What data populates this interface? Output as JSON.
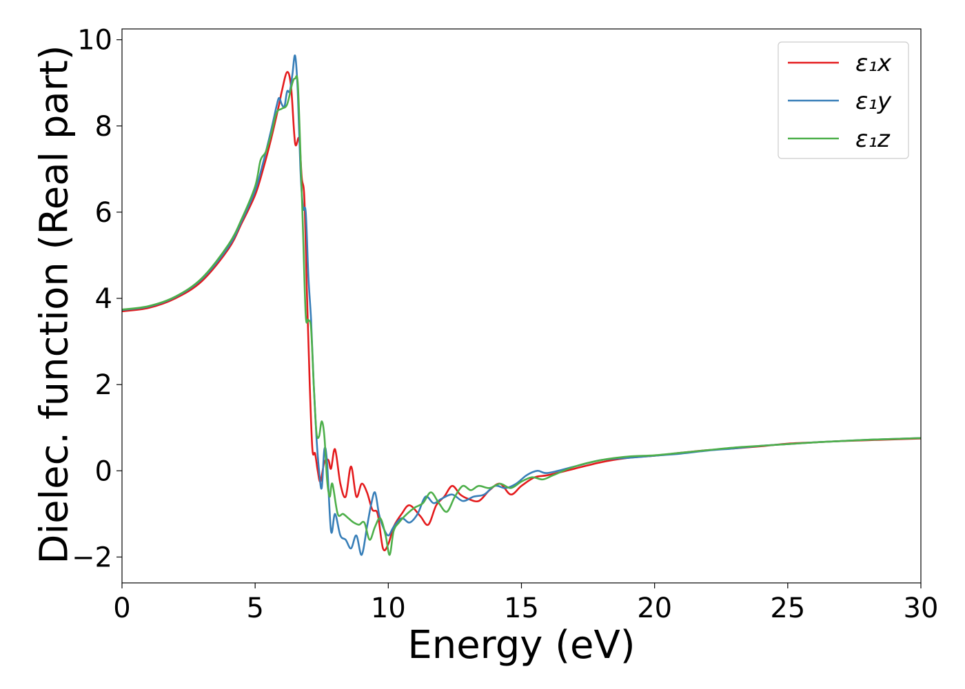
{
  "chart_data": {
    "type": "line",
    "xlabel": "Energy (eV)",
    "ylabel": "Dielec. function (Real part)",
    "xlim": [
      0,
      30
    ],
    "ylim": [
      -2.6,
      10.25
    ],
    "xticks": [
      0,
      5,
      10,
      15,
      20,
      25,
      30
    ],
    "yticks": [
      -2,
      0,
      2,
      4,
      6,
      8,
      10
    ],
    "xtick_labels": [
      "0",
      "5",
      "10",
      "15",
      "20",
      "25",
      "30"
    ],
    "ytick_labels": [
      "−2",
      "0",
      "2",
      "4",
      "6",
      "8",
      "10"
    ],
    "grid": false,
    "legend_position": "top-right",
    "series": [
      {
        "name": "ε₁x",
        "color": "#e41a1c",
        "x": [
          0,
          1,
          2,
          3,
          4,
          4.5,
          5,
          5.3,
          5.6,
          5.9,
          6.0,
          6.2,
          6.35,
          6.5,
          6.65,
          6.75,
          6.85,
          6.95,
          7.05,
          7.15,
          7.25,
          7.35,
          7.45,
          7.6,
          7.75,
          7.85,
          8.0,
          8.2,
          8.4,
          8.6,
          8.8,
          9.0,
          9.2,
          9.4,
          9.6,
          9.8,
          10.0,
          10.2,
          10.5,
          10.8,
          11.2,
          11.5,
          11.8,
          12.1,
          12.4,
          12.7,
          13.0,
          13.4,
          13.8,
          14.2,
          14.6,
          15.0,
          15.5,
          16.0,
          17.0,
          18.0,
          19.0,
          20.0,
          21.0,
          22.0,
          23.0,
          24.0,
          25.0,
          26.0,
          27.0,
          28.0,
          29.0,
          30.0
        ],
        "y": [
          3.7,
          3.78,
          4.0,
          4.4,
          5.15,
          5.75,
          6.4,
          7.0,
          7.7,
          8.5,
          8.8,
          9.25,
          8.9,
          7.6,
          7.7,
          6.8,
          6.3,
          4.0,
          2.0,
          0.5,
          0.4,
          0.0,
          -0.25,
          0.2,
          0.25,
          0.05,
          0.5,
          -0.3,
          -0.6,
          0.1,
          -0.6,
          -0.3,
          -0.5,
          -0.9,
          -1.0,
          -1.8,
          -1.7,
          -1.3,
          -1.0,
          -0.8,
          -1.05,
          -1.25,
          -0.8,
          -0.6,
          -0.35,
          -0.55,
          -0.65,
          -0.7,
          -0.45,
          -0.3,
          -0.55,
          -0.35,
          -0.15,
          -0.1,
          0.05,
          0.2,
          0.3,
          0.35,
          0.42,
          0.48,
          0.52,
          0.57,
          0.63,
          0.66,
          0.69,
          0.71,
          0.73,
          0.75
        ]
      },
      {
        "name": "ε₁y",
        "color": "#377eb8",
        "x": [
          0,
          1,
          2,
          3,
          4,
          4.5,
          5,
          5.3,
          5.6,
          5.8,
          5.9,
          6.0,
          6.1,
          6.2,
          6.3,
          6.4,
          6.5,
          6.6,
          6.7,
          6.8,
          6.9,
          7.0,
          7.1,
          7.2,
          7.3,
          7.4,
          7.5,
          7.6,
          7.7,
          7.85,
          8.0,
          8.2,
          8.4,
          8.6,
          8.8,
          9.0,
          9.2,
          9.35,
          9.5,
          9.65,
          9.8,
          10.0,
          10.2,
          10.5,
          10.8,
          11.1,
          11.4,
          11.7,
          12.0,
          12.4,
          12.8,
          13.2,
          13.6,
          14.0,
          14.4,
          14.8,
          15.2,
          15.6,
          16.0,
          17.0,
          18.0,
          19.0,
          20.0,
          21.0,
          22.0,
          23.0,
          24.0,
          25.0,
          26.0,
          27.0,
          28.0,
          29.0,
          30.0
        ],
        "y": [
          3.73,
          3.81,
          4.03,
          4.45,
          5.2,
          5.8,
          6.5,
          7.15,
          7.9,
          8.45,
          8.65,
          8.5,
          8.45,
          8.8,
          8.8,
          9.2,
          9.63,
          8.8,
          7.0,
          6.1,
          6.0,
          4.5,
          3.5,
          2.0,
          0.8,
          0.0,
          -0.4,
          0.5,
          0.2,
          -1.4,
          -1.0,
          -1.5,
          -1.6,
          -1.8,
          -1.5,
          -1.95,
          -1.3,
          -0.8,
          -0.5,
          -1.0,
          -1.3,
          -1.5,
          -1.3,
          -1.1,
          -1.2,
          -1.0,
          -0.6,
          -0.75,
          -0.65,
          -0.55,
          -0.7,
          -0.6,
          -0.55,
          -0.35,
          -0.4,
          -0.3,
          -0.1,
          0.0,
          -0.05,
          0.1,
          0.25,
          0.3,
          0.35,
          0.4,
          0.47,
          0.52,
          0.58,
          0.62,
          0.66,
          0.69,
          0.72,
          0.74,
          0.76
        ]
      },
      {
        "name": "ε₁z",
        "color": "#4daf4a",
        "x": [
          0,
          1,
          2,
          3,
          4,
          4.5,
          5,
          5.2,
          5.4,
          5.6,
          5.8,
          6.0,
          6.2,
          6.4,
          6.5,
          6.6,
          6.7,
          6.8,
          6.9,
          7.0,
          7.1,
          7.2,
          7.3,
          7.4,
          7.5,
          7.6,
          7.7,
          7.8,
          7.9,
          8.1,
          8.3,
          8.5,
          8.7,
          8.9,
          9.1,
          9.3,
          9.5,
          9.7,
          9.9,
          10.05,
          10.2,
          10.4,
          10.7,
          11.0,
          11.3,
          11.6,
          11.9,
          12.2,
          12.5,
          12.8,
          13.1,
          13.4,
          13.8,
          14.2,
          14.6,
          15.0,
          15.4,
          15.8,
          16.2,
          17.0,
          18.0,
          19.0,
          20.0,
          21.0,
          22.0,
          23.0,
          24.0,
          25.0,
          26.0,
          27.0,
          28.0,
          29.0,
          30.0
        ],
        "y": [
          3.74,
          3.82,
          4.04,
          4.47,
          5.25,
          5.85,
          6.6,
          7.2,
          7.4,
          7.8,
          8.3,
          8.4,
          8.5,
          9.0,
          9.1,
          9.0,
          7.4,
          5.5,
          3.6,
          3.5,
          3.3,
          2.0,
          0.9,
          0.8,
          1.15,
          0.8,
          -0.2,
          -0.6,
          -0.3,
          -1.0,
          -1.0,
          -1.1,
          -1.2,
          -1.25,
          -1.2,
          -1.6,
          -1.3,
          -1.1,
          -1.5,
          -1.95,
          -1.4,
          -1.2,
          -1.0,
          -0.85,
          -0.75,
          -0.5,
          -0.75,
          -0.95,
          -0.6,
          -0.35,
          -0.45,
          -0.35,
          -0.4,
          -0.3,
          -0.4,
          -0.25,
          -0.15,
          -0.2,
          -0.1,
          0.1,
          0.25,
          0.33,
          0.36,
          0.42,
          0.48,
          0.54,
          0.58,
          0.62,
          0.66,
          0.69,
          0.72,
          0.74,
          0.76
        ]
      }
    ]
  }
}
